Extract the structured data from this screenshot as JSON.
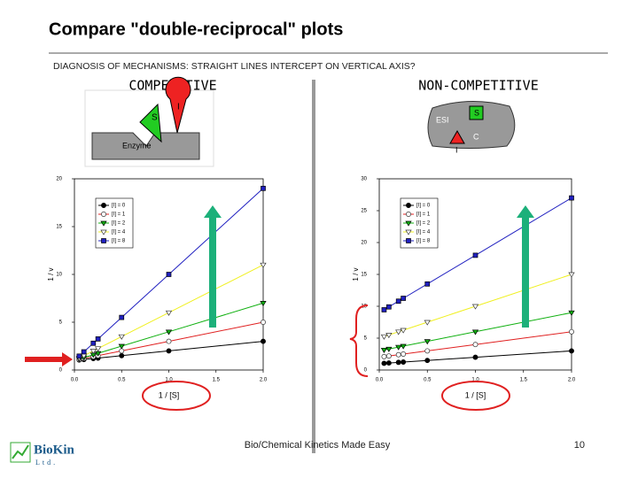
{
  "slide": {
    "title": "Compare \"double-reciprocal\" plots",
    "subtitle": "DIAGNOSIS OF MECHANISMS: STRAIGHT LINES INTERCEPT ON VERTICAL AXIS?",
    "left_heading": "COMPETITIVE",
    "right_heading": "NON-COMPETITIVE",
    "footer": "Bio/Chemical Kinetics Made Easy",
    "page_number": "10",
    "logo": "BioKin",
    "logo_sub": "Ltd."
  },
  "diagrams": {
    "competitive": {
      "substrate": "S",
      "inhibitor": "I",
      "enzyme": "Enzyme"
    },
    "noncompetitive": {
      "complex": "ESI",
      "substrate": "S",
      "inhibitor": "I",
      "site": "C"
    }
  },
  "chart_data": [
    {
      "type": "line",
      "xlabel": "1 / [S]",
      "ylabel": "1 / v",
      "x": [
        0.05,
        0.1,
        0.2,
        0.25,
        0.5,
        1,
        2
      ],
      "xlim": [
        0,
        2
      ],
      "ylim": [
        0,
        20
      ],
      "xticks": [
        {
          "value": 0,
          "label": "0.0"
        },
        {
          "value": 0.5,
          "label": "0.5"
        },
        {
          "value": 1,
          "label": "1.0"
        },
        {
          "value": 1.5,
          "label": "1.5"
        },
        {
          "value": 2,
          "label": "2.0"
        }
      ],
      "yticks": [
        0,
        5,
        10,
        15,
        20
      ],
      "series": [
        {
          "name": "[I] = 0",
          "color": "#000000",
          "marker": "circle",
          "filled": true,
          "values": [
            1.05,
            1.1,
            1.2,
            1.25,
            1.5,
            2,
            3
          ]
        },
        {
          "name": "[I] = 1",
          "color": "#e02020",
          "marker": "circle",
          "filled": false,
          "values": [
            1.1,
            1.2,
            1.4,
            1.5,
            2,
            3,
            5
          ]
        },
        {
          "name": "[I] = 2",
          "color": "#10b010",
          "marker": "triangle",
          "filled": true,
          "values": [
            1.15,
            1.3,
            1.6,
            1.75,
            2.5,
            4,
            7
          ]
        },
        {
          "name": "[I] = 4",
          "color": "#f0f020",
          "marker": "triangle",
          "filled": false,
          "values": [
            1.25,
            1.5,
            2,
            2.25,
            3.5,
            6,
            11
          ]
        },
        {
          "name": "[I] = 8",
          "color": "#2020c0",
          "marker": "square",
          "filled": true,
          "values": [
            1.45,
            1.9,
            2.8,
            3.25,
            5.5,
            10,
            19
          ]
        }
      ]
    },
    {
      "type": "line",
      "xlabel": "1 / [S]",
      "ylabel": "1 / v",
      "x": [
        0.05,
        0.1,
        0.2,
        0.25,
        0.5,
        1,
        2
      ],
      "xlim": [
        0,
        2
      ],
      "ylim": [
        0,
        30
      ],
      "xticks": [
        {
          "value": 0,
          "label": "0.0"
        },
        {
          "value": 0.5,
          "label": "0.5"
        },
        {
          "value": 1,
          "label": "1.0"
        },
        {
          "value": 1.5,
          "label": "1.5"
        },
        {
          "value": 2,
          "label": "2.0"
        }
      ],
      "yticks": [
        0,
        5,
        10,
        15,
        20,
        25,
        30
      ],
      "series": [
        {
          "name": "[I] = 0",
          "color": "#000000",
          "marker": "circle",
          "filled": true,
          "values": [
            1.05,
            1.1,
            1.2,
            1.25,
            1.5,
            2,
            3
          ]
        },
        {
          "name": "[I] = 1",
          "color": "#e02020",
          "marker": "circle",
          "filled": false,
          "values": [
            2.1,
            2.2,
            2.4,
            2.5,
            3,
            4,
            6
          ]
        },
        {
          "name": "[I] = 2",
          "color": "#10b010",
          "marker": "triangle",
          "filled": true,
          "values": [
            3.15,
            3.3,
            3.6,
            3.75,
            4.5,
            6,
            9
          ]
        },
        {
          "name": "[I] = 4",
          "color": "#f0f020",
          "marker": "triangle",
          "filled": false,
          "values": [
            5.25,
            5.5,
            6,
            6.25,
            7.5,
            10,
            15
          ]
        },
        {
          "name": "[I] = 8",
          "color": "#2020c0",
          "marker": "square",
          "filled": true,
          "values": [
            9.45,
            9.9,
            10.8,
            11.25,
            13.5,
            18,
            27
          ]
        }
      ]
    }
  ]
}
